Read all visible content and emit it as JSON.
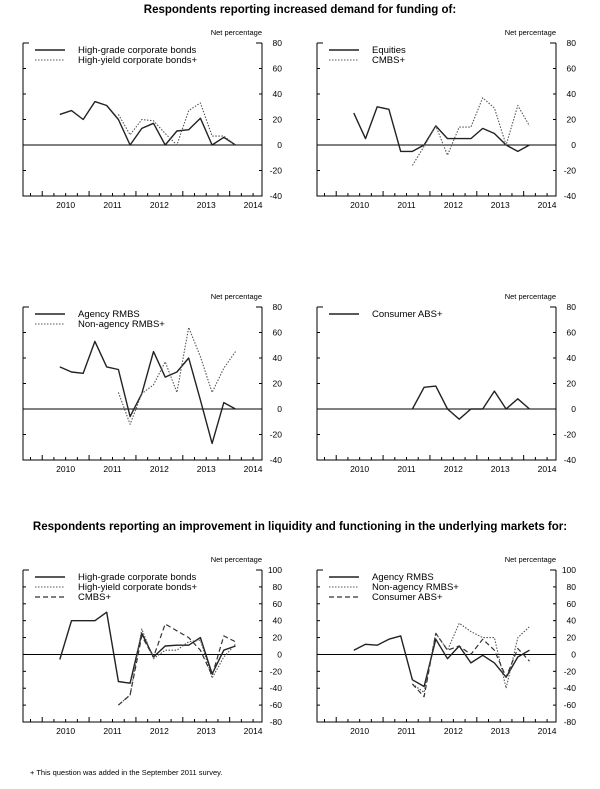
{
  "titles": {
    "demand": "Respondents reporting increased demand for funding of:",
    "liquidity": "Respondents reporting an improvement in liquidity and functioning in the underlying markets for:"
  },
  "footnote": "+ This question was added in the September 2011 survey.",
  "chart_data": [
    {
      "type": "line",
      "ylabel": "Net percentage",
      "ylim": [
        -40,
        80
      ],
      "yticks": [
        -40,
        -20,
        0,
        20,
        40,
        60,
        80
      ],
      "xticks": [
        "2010",
        "2011",
        "2012",
        "2013",
        "2014"
      ],
      "x_step": 0.25,
      "series": [
        {
          "name": "High-grade corporate bonds",
          "style": "solid",
          "x_start": 2010.375,
          "values": [
            24,
            27,
            20,
            34,
            31,
            20,
            0,
            13,
            17,
            0,
            11,
            12,
            21,
            0,
            6,
            0
          ]
        },
        {
          "name": "High-yield corporate bonds+",
          "style": "dotted",
          "x_start": 2011.625,
          "values": [
            24,
            8,
            20,
            19,
            9,
            0,
            27,
            33,
            7,
            7,
            0
          ]
        }
      ]
    },
    {
      "type": "line",
      "ylabel": "Net percentage",
      "ylim": [
        -40,
        80
      ],
      "yticks": [
        -40,
        -20,
        0,
        20,
        40,
        60,
        80
      ],
      "xticks": [
        "2010",
        "2011",
        "2012",
        "2013",
        "2014"
      ],
      "x_step": 0.25,
      "series": [
        {
          "name": "Equities",
          "style": "solid",
          "x_start": 2010.375,
          "values": [
            25,
            5,
            30,
            28,
            -5,
            -5,
            0,
            15,
            5,
            5,
            5,
            13,
            9,
            0,
            -5,
            0
          ]
        },
        {
          "name": "CMBS+",
          "style": "dotted",
          "x_start": 2011.625,
          "values": [
            -16,
            -1,
            15,
            -8,
            14,
            14,
            37,
            29,
            0,
            31,
            15
          ]
        }
      ]
    },
    {
      "type": "line",
      "ylabel": "Net percentage",
      "ylim": [
        -40,
        80
      ],
      "yticks": [
        -40,
        -20,
        0,
        20,
        40,
        60,
        80
      ],
      "xticks": [
        "2010",
        "2011",
        "2012",
        "2013",
        "2014"
      ],
      "x_step": 0.25,
      "series": [
        {
          "name": "Agency RMBS",
          "style": "solid",
          "x_start": 2010.375,
          "values": [
            33,
            29,
            28,
            53,
            33,
            31,
            -6,
            12,
            45,
            25,
            29,
            40,
            7,
            -27,
            5,
            0
          ]
        },
        {
          "name": "Non-agency RMBS+",
          "style": "dotted",
          "x_start": 2011.625,
          "values": [
            13,
            -12,
            12,
            19,
            37,
            13,
            64,
            41,
            13,
            32,
            45
          ]
        }
      ]
    },
    {
      "type": "line",
      "ylabel": "Net percentage",
      "ylim": [
        -40,
        80
      ],
      "yticks": [
        -40,
        -20,
        0,
        20,
        40,
        60,
        80
      ],
      "xticks": [
        "2010",
        "2011",
        "2012",
        "2013",
        "2014"
      ],
      "x_step": 0.25,
      "series": [
        {
          "name": "Consumer ABS+",
          "style": "solid",
          "x_start": 2011.625,
          "values": [
            0,
            17,
            18,
            0,
            -8,
            0,
            0,
            14,
            0,
            8,
            0
          ]
        }
      ]
    },
    {
      "type": "line",
      "ylabel": "Net percentage",
      "ylim": [
        -80,
        100
      ],
      "yticks": [
        -80,
        -60,
        -40,
        -20,
        0,
        20,
        40,
        60,
        80,
        100
      ],
      "xticks": [
        "2010",
        "2011",
        "2012",
        "2013",
        "2014"
      ],
      "x_step": 0.25,
      "series": [
        {
          "name": "High-grade corporate bonds",
          "style": "solid",
          "x_start": 2010.375,
          "values": [
            -6,
            40,
            40,
            40,
            50,
            -32,
            -34,
            25,
            -3,
            10,
            11,
            11,
            20,
            -23,
            5,
            10
          ]
        },
        {
          "name": "High-yield corporate bonds+",
          "style": "dotted",
          "x_start": 2011.625,
          "values": [
            -60,
            -48,
            30,
            -5,
            5,
            5,
            15,
            17,
            -28,
            -3,
            12
          ]
        },
        {
          "name": "CMBS+",
          "style": "dashed",
          "x_start": 2011.625,
          "values": [
            -60,
            -48,
            22,
            -3,
            36,
            28,
            20,
            5,
            -25,
            22,
            15
          ]
        }
      ]
    },
    {
      "type": "line",
      "ylabel": "Net percentage",
      "ylim": [
        -80,
        100
      ],
      "yticks": [
        -80,
        -60,
        -40,
        -20,
        0,
        20,
        40,
        60,
        80,
        100
      ],
      "xticks": [
        "2010",
        "2011",
        "2012",
        "2013",
        "2014"
      ],
      "x_step": 0.25,
      "series": [
        {
          "name": "Agency RMBS",
          "style": "solid",
          "x_start": 2010.375,
          "values": [
            5,
            12,
            11,
            18,
            22,
            -30,
            -38,
            18,
            -5,
            10,
            -10,
            -1,
            -10,
            -27,
            -3,
            5
          ]
        },
        {
          "name": "Non-agency RMBS+",
          "style": "dotted",
          "x_start": 2011.625,
          "values": [
            -35,
            -45,
            25,
            5,
            37,
            27,
            20,
            20,
            -40,
            20,
            33
          ]
        },
        {
          "name": "Consumer ABS+",
          "style": "dashed",
          "x_start": 2011.625,
          "values": [
            -35,
            -50,
            25,
            5,
            10,
            0,
            18,
            5,
            -27,
            7,
            -8
          ]
        }
      ]
    }
  ]
}
